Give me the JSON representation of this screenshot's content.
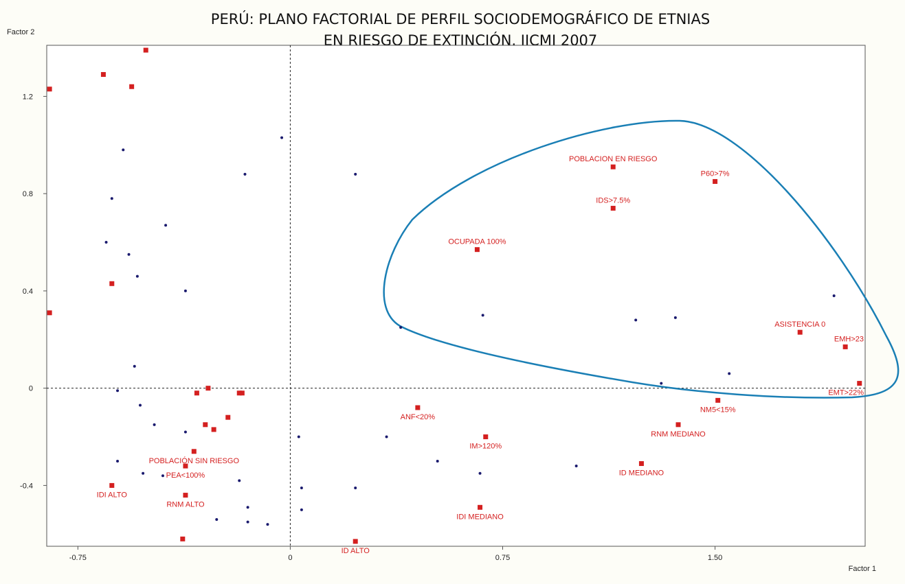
{
  "chart_data": {
    "type": "scatter",
    "title_line1": "PERÚ: PLANO FACTORIAL DE PERFIL SOCIODEMOGRÁFICO DE ETNIAS",
    "title_line2": "EN RIESGO DE EXTINCIÓN. IICMI 2007",
    "xlabel": "Factor 1",
    "ylabel": "Factor 2",
    "xlim": [
      -0.86,
      2.03
    ],
    "ylim": [
      -0.65,
      1.41
    ],
    "x_ticks": [
      {
        "value": -0.75,
        "label": "-0.75"
      },
      {
        "value": 0,
        "label": "0"
      },
      {
        "value": 0.75,
        "label": "0.75"
      },
      {
        "value": 1.5,
        "label": "1.50"
      }
    ],
    "y_ticks": [
      {
        "value": -0.4,
        "label": "-0.4"
      },
      {
        "value": 0,
        "label": "0"
      },
      {
        "value": 0.4,
        "label": "0.4"
      },
      {
        "value": 0.8,
        "label": "0.8"
      },
      {
        "value": 1.2,
        "label": "1.2"
      }
    ],
    "reference_lines": {
      "x": 0,
      "y": 0,
      "style": "dotted"
    },
    "grid": false,
    "legend": "none",
    "colors": {
      "categories": "#d42020",
      "individuals": "#1a1a6e",
      "enclosure": "#1a7fb5"
    },
    "labeled_categories": [
      {
        "label": "POBLACION EN RIESGO",
        "x": 1.14,
        "y": 0.91
      },
      {
        "label": "P60>7%",
        "x": 1.5,
        "y": 0.85
      },
      {
        "label": "IDS>7.5%",
        "x": 1.14,
        "y": 0.74
      },
      {
        "label": "OCUPADA 100%",
        "x": 0.66,
        "y": 0.57
      },
      {
        "label": "ASISTENCIA 0",
        "x": 1.8,
        "y": 0.23
      },
      {
        "label": "EMH>23",
        "x": 1.96,
        "y": 0.17
      },
      {
        "label": "EMT>22%",
        "x": 2.01,
        "y": 0.02
      },
      {
        "label": "NM5<15%",
        "x": 1.51,
        "y": -0.05
      },
      {
        "label": "ANF<20%",
        "x": 0.45,
        "y": -0.08
      },
      {
        "label": "RNM MEDIANO",
        "x": 1.37,
        "y": -0.15
      },
      {
        "label": "IM>120%",
        "x": 0.69,
        "y": -0.2
      },
      {
        "label": "POBLACIÓN SIN RIESGO",
        "x": -0.34,
        "y": -0.26
      },
      {
        "label": "ID MEDIANO",
        "x": 1.24,
        "y": -0.31
      },
      {
        "label": "PEA<100%",
        "x": -0.37,
        "y": -0.32
      },
      {
        "label": "IDI ALTO",
        "x": -0.63,
        "y": -0.4
      },
      {
        "label": "RNM ALTO",
        "x": -0.37,
        "y": -0.44
      },
      {
        "label": "IDI MEDIANO",
        "x": 0.67,
        "y": -0.49
      },
      {
        "label": "ID ALTO",
        "x": 0.23,
        "y": -0.63
      }
    ],
    "unlabeled_categories": [
      {
        "x": -0.51,
        "y": 1.39
      },
      {
        "x": -0.66,
        "y": 1.29
      },
      {
        "x": -0.56,
        "y": 1.24
      },
      {
        "x": -0.85,
        "y": 1.23
      },
      {
        "x": -0.63,
        "y": 0.43
      },
      {
        "x": -0.85,
        "y": 0.31
      },
      {
        "x": -0.33,
        "y": -0.02
      },
      {
        "x": -0.29,
        "y": 0.0
      },
      {
        "x": -0.18,
        "y": -0.02
      },
      {
        "x": -0.17,
        "y": -0.02
      },
      {
        "x": -0.22,
        "y": -0.12
      },
      {
        "x": -0.3,
        "y": -0.15
      },
      {
        "x": -0.27,
        "y": -0.17
      },
      {
        "x": -0.38,
        "y": -0.62
      }
    ],
    "individuals": [
      {
        "x": -0.03,
        "y": 1.03
      },
      {
        "x": -0.59,
        "y": 0.98
      },
      {
        "x": -0.16,
        "y": 0.88
      },
      {
        "x": 0.23,
        "y": 0.88
      },
      {
        "x": -0.63,
        "y": 0.78
      },
      {
        "x": -0.44,
        "y": 0.67
      },
      {
        "x": -0.65,
        "y": 0.6
      },
      {
        "x": -0.57,
        "y": 0.55
      },
      {
        "x": -0.54,
        "y": 0.46
      },
      {
        "x": -0.37,
        "y": 0.4
      },
      {
        "x": 1.92,
        "y": 0.38
      },
      {
        "x": 0.68,
        "y": 0.3
      },
      {
        "x": 1.36,
        "y": 0.29
      },
      {
        "x": 1.22,
        "y": 0.28
      },
      {
        "x": 0.39,
        "y": 0.25
      },
      {
        "x": -0.55,
        "y": 0.09
      },
      {
        "x": 1.55,
        "y": 0.06
      },
      {
        "x": 1.31,
        "y": 0.02
      },
      {
        "x": -0.61,
        "y": -0.01
      },
      {
        "x": -0.53,
        "y": -0.07
      },
      {
        "x": -0.48,
        "y": -0.15
      },
      {
        "x": -0.37,
        "y": -0.18
      },
      {
        "x": 0.03,
        "y": -0.2
      },
      {
        "x": 0.34,
        "y": -0.2
      },
      {
        "x": 0.52,
        "y": -0.3
      },
      {
        "x": -0.61,
        "y": -0.3
      },
      {
        "x": 0.67,
        "y": -0.35
      },
      {
        "x": 1.01,
        "y": -0.32
      },
      {
        "x": -0.52,
        "y": -0.35
      },
      {
        "x": -0.45,
        "y": -0.36
      },
      {
        "x": -0.18,
        "y": -0.38
      },
      {
        "x": 0.04,
        "y": -0.41
      },
      {
        "x": 0.23,
        "y": -0.41
      },
      {
        "x": -0.15,
        "y": -0.49
      },
      {
        "x": 0.04,
        "y": -0.5
      },
      {
        "x": -0.26,
        "y": -0.54
      },
      {
        "x": -0.15,
        "y": -0.55
      },
      {
        "x": -0.08,
        "y": -0.56
      }
    ]
  }
}
